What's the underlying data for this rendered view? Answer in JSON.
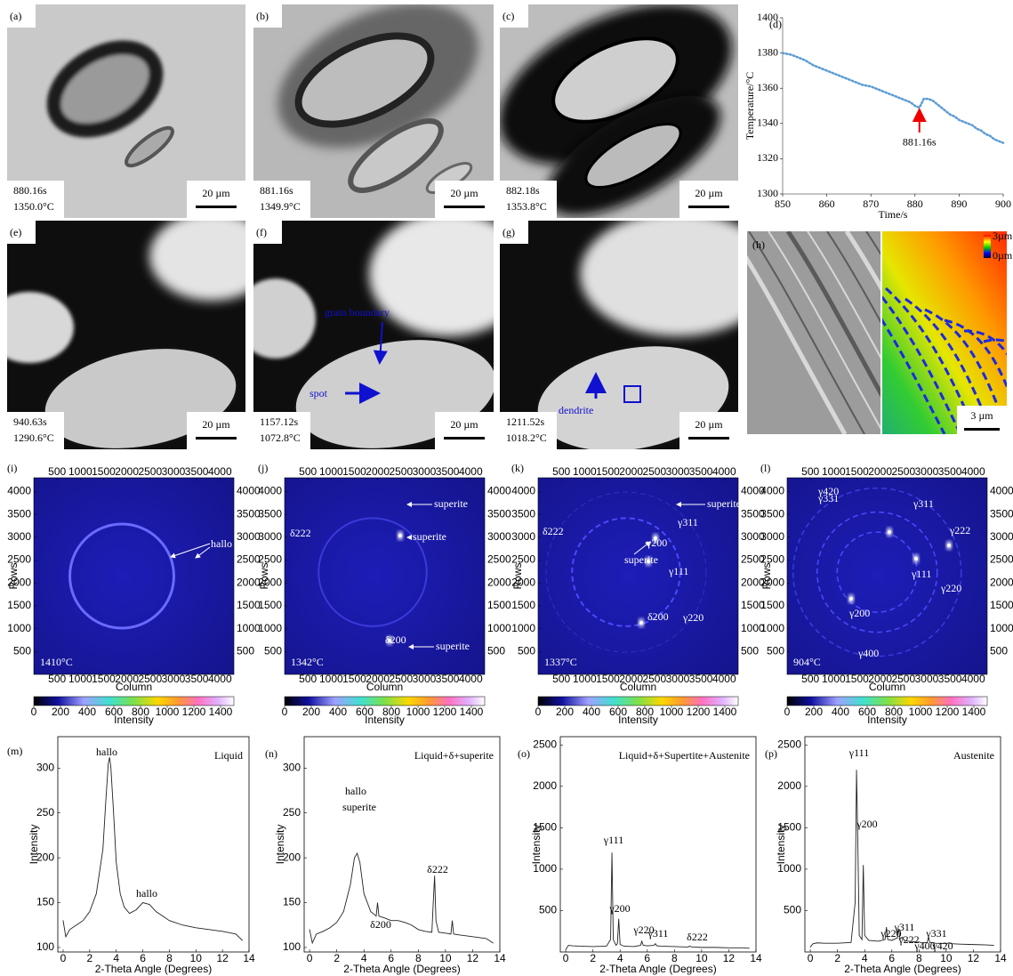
{
  "micrographs": [
    {
      "label": "(a)",
      "time": "880.16s",
      "temperature": "1350.0°C",
      "scale": "20 µm"
    },
    {
      "label": "(b)",
      "time": "881.16s",
      "temperature": "1349.9°C",
      "scale": "20 µm"
    },
    {
      "label": "(c)",
      "time": "882.18s",
      "temperature": "1353.8°C",
      "scale": "20 µm"
    },
    {
      "label": "(e)",
      "time": "940.63s",
      "temperature": "1290.6°C",
      "scale": "20 µm"
    },
    {
      "label": "(f)",
      "time": "1157.12s",
      "temperature": "1072.8°C",
      "scale": "20 µm",
      "annotations": [
        "grain boundary",
        "spot"
      ]
    },
    {
      "label": "(g)",
      "time": "1211.52s",
      "temperature": "1018.2°C",
      "scale": "20 µm",
      "annotations": [
        "dendrite"
      ]
    }
  ],
  "height_map": {
    "label": "(h)",
    "scale": "3 µm",
    "colorbar_labels": [
      "3µm",
      "0µm"
    ]
  },
  "diffraction": {
    "axes": {
      "ticks": [
        500,
        1000,
        1500,
        2000,
        2500,
        3000,
        3500,
        4000
      ],
      "x_title": "Column",
      "y_title": "Rows",
      "colorbar_title": "Intensity",
      "colorbar_ticks": [
        0,
        200,
        400,
        600,
        800,
        1000,
        1200,
        1400
      ]
    },
    "panels": [
      {
        "label": "(i)",
        "temperature": "1410°C",
        "annotations": [
          "hallo"
        ]
      },
      {
        "label": "(j)",
        "temperature": "1342°C",
        "annotations": [
          "superite",
          "superite",
          "superite",
          "δ222",
          "δ200"
        ]
      },
      {
        "label": "(k)",
        "temperature": "1337°C",
        "annotations": [
          "superite",
          "superite",
          "δ222",
          "γ311",
          "γ200",
          "γ111",
          "γ220",
          "δ200"
        ]
      },
      {
        "label": "(l)",
        "temperature": "904°C",
        "annotations": [
          "γ420",
          "γ331",
          "γ311",
          "γ222",
          "γ111",
          "γ220",
          "γ200",
          "γ400"
        ]
      }
    ]
  },
  "chart_data": [
    {
      "type": "line",
      "panel_label": "(d)",
      "x_label": "Time/s",
      "y_label": "Temperature/°C",
      "annotation": "881.16s",
      "color": "#5b9bd5",
      "x": [
        850,
        851,
        852,
        853,
        854,
        855,
        856,
        857,
        858,
        859,
        860,
        861,
        862,
        863,
        864,
        865,
        866,
        867,
        868,
        869,
        870,
        871,
        872,
        873,
        874,
        875,
        876,
        877,
        878,
        879,
        880,
        881,
        882,
        883,
        884,
        885,
        886,
        887,
        888,
        889,
        890,
        891,
        892,
        893,
        894,
        895,
        896,
        897,
        898,
        899,
        900
      ],
      "values": [
        1380,
        1379.5,
        1379,
        1378,
        1377,
        1376,
        1374.5,
        1373,
        1372,
        1371,
        1370,
        1369,
        1368,
        1367,
        1366,
        1365,
        1364,
        1363,
        1362,
        1361.5,
        1361,
        1360,
        1359,
        1358,
        1357,
        1356,
        1355,
        1354,
        1353,
        1352,
        1350,
        1349,
        1354,
        1354,
        1353,
        1351,
        1349,
        1347,
        1345,
        1344,
        1342,
        1341,
        1340,
        1339,
        1337,
        1336,
        1334,
        1333,
        1331,
        1330,
        1329
      ],
      "xlim": [
        850,
        900
      ],
      "ylim": [
        1300,
        1400
      ],
      "xticks": [
        850,
        860,
        870,
        880,
        890,
        900
      ],
      "yticks": [
        1300,
        1320,
        1340,
        1360,
        1380,
        1400
      ]
    },
    {
      "type": "line",
      "panel_label": "(m)",
      "x_label": "2-Theta Angle (Degrees)",
      "y_label": "Intensity",
      "phase": "Liquid",
      "peak_labels": [
        "hallo",
        "hallo"
      ],
      "color": "#222222",
      "x": [
        0,
        0.2,
        0.5,
        1,
        1.5,
        2,
        2.5,
        3,
        3.2,
        3.4,
        3.5,
        3.6,
        3.8,
        4,
        4.3,
        4.6,
        5,
        5.5,
        6,
        6.5,
        7,
        7.5,
        8,
        9,
        10,
        11,
        12,
        13,
        13.5
      ],
      "values": [
        130,
        112,
        120,
        125,
        130,
        140,
        160,
        210,
        260,
        305,
        312,
        300,
        250,
        195,
        160,
        145,
        138,
        142,
        150,
        148,
        140,
        135,
        130,
        125,
        122,
        120,
        118,
        115,
        108
      ],
      "xlim": [
        -0.4,
        14
      ],
      "ylim": [
        95,
        335
      ],
      "xticks": [
        0,
        2,
        4,
        6,
        8,
        10,
        12,
        14
      ],
      "yticks": [
        100,
        150,
        200,
        250,
        300
      ]
    },
    {
      "type": "line",
      "panel_label": "(n)",
      "x_label": "2-Theta Angle (Degrees)",
      "y_label": "Intensity",
      "phase": "Liquid+δ+superite",
      "peak_labels": [
        "hallo",
        "superite",
        "δ200",
        "δ222"
      ],
      "color": "#222222",
      "x": [
        0,
        0.2,
        0.5,
        1,
        1.5,
        2,
        2.5,
        3,
        3.3,
        3.5,
        3.7,
        4,
        4.5,
        4.9,
        5,
        5.1,
        5.5,
        6,
        6.5,
        7,
        7.5,
        8,
        8.5,
        9,
        9.1,
        9.2,
        9.3,
        9.5,
        10,
        10.4,
        10.5,
        10.6,
        11,
        12,
        13,
        13.5
      ],
      "values": [
        120,
        105,
        115,
        118,
        122,
        128,
        140,
        170,
        200,
        205,
        195,
        160,
        140,
        135,
        150,
        135,
        133,
        130,
        130,
        128,
        125,
        120,
        118,
        117,
        150,
        180,
        130,
        117,
        116,
        115,
        130,
        115,
        114,
        112,
        110,
        105
      ],
      "xlim": [
        -0.4,
        14
      ],
      "ylim": [
        95,
        335
      ],
      "xticks": [
        0,
        2,
        4,
        6,
        8,
        10,
        12,
        14
      ],
      "yticks": [
        100,
        150,
        200,
        250,
        300
      ]
    },
    {
      "type": "line",
      "panel_label": "(o)",
      "x_label": "2-Theta Angle (Degrees)",
      "y_label": "Intensity",
      "phase": "Liquid+δ+Supertite+Austenite",
      "peak_labels": [
        "γ111",
        "γ200",
        "γ220",
        "γ311",
        "δ222"
      ],
      "color": "#222222",
      "x": [
        0,
        0.2,
        0.5,
        1,
        2,
        3,
        3.3,
        3.4,
        3.5,
        3.7,
        3.8,
        3.9,
        4,
        4.3,
        5,
        5.5,
        5.6,
        5.7,
        6,
        6.5,
        6.6,
        6.7,
        7,
        8,
        9,
        9.1,
        9.2,
        9.3,
        10,
        11,
        12,
        13,
        13.5
      ],
      "values": [
        30,
        80,
        75,
        70,
        65,
        70,
        150,
        1200,
        150,
        80,
        100,
        400,
        90,
        70,
        65,
        80,
        130,
        80,
        75,
        80,
        100,
        75,
        70,
        65,
        60,
        70,
        65,
        60,
        55,
        55,
        50,
        50,
        45
      ],
      "xlim": [
        -0.4,
        14
      ],
      "ylim": [
        0,
        2600
      ],
      "xticks": [
        0,
        2,
        4,
        6,
        8,
        10,
        12,
        14
      ],
      "yticks": [
        500,
        1000,
        1500,
        2000,
        2500
      ]
    },
    {
      "type": "line",
      "panel_label": "(p)",
      "x_label": "2-Theta Angle (Degrees)",
      "y_label": "Intensity",
      "phase": "Austenite",
      "peak_labels": [
        "γ111",
        "γ200",
        "γ220",
        "γ311",
        "γ222",
        "γ331",
        "γ400",
        "γ420"
      ],
      "color": "#222222",
      "x": [
        0,
        0.2,
        0.5,
        1,
        2,
        3,
        3.3,
        3.4,
        3.5,
        3.6,
        3.8,
        3.9,
        4,
        4.3,
        5,
        5.5,
        5.6,
        5.7,
        6,
        6.4,
        6.5,
        6.6,
        6.7,
        6.8,
        6.9,
        7.2,
        7.8,
        8,
        8.2,
        8.6,
        8.7,
        8.8,
        9,
        9.2,
        10,
        10.2,
        10.4,
        11,
        12,
        13,
        13.5
      ],
      "values": [
        60,
        100,
        110,
        105,
        105,
        115,
        600,
        2200,
        1300,
        200,
        150,
        1050,
        200,
        140,
        130,
        150,
        300,
        150,
        140,
        170,
        280,
        160,
        170,
        180,
        140,
        130,
        120,
        120,
        110,
        115,
        180,
        110,
        115,
        105,
        100,
        110,
        100,
        95,
        90,
        85,
        80
      ],
      "xlim": [
        -0.4,
        14
      ],
      "ylim": [
        0,
        2600
      ],
      "xticks": [
        0,
        2,
        4,
        6,
        8,
        10,
        12,
        14
      ],
      "yticks": [
        500,
        1000,
        1500,
        2000,
        2500
      ]
    }
  ]
}
